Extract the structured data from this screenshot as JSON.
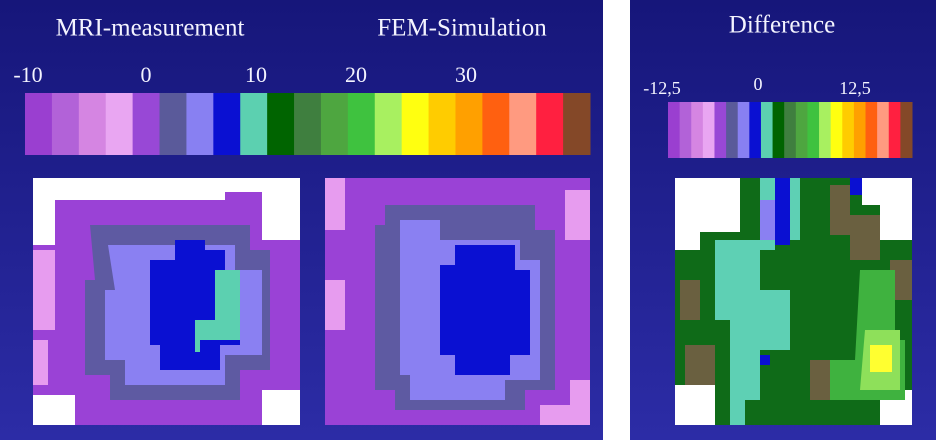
{
  "left_panel": {
    "titles": [
      "MRI-measurement",
      "FEM-Simulation"
    ],
    "scale_labels": [
      "-10",
      "0",
      "10",
      "20",
      "30"
    ]
  },
  "right_panel": {
    "title": "Difference",
    "scale_labels": [
      "-12,5",
      "0",
      "12,5"
    ]
  }
}
